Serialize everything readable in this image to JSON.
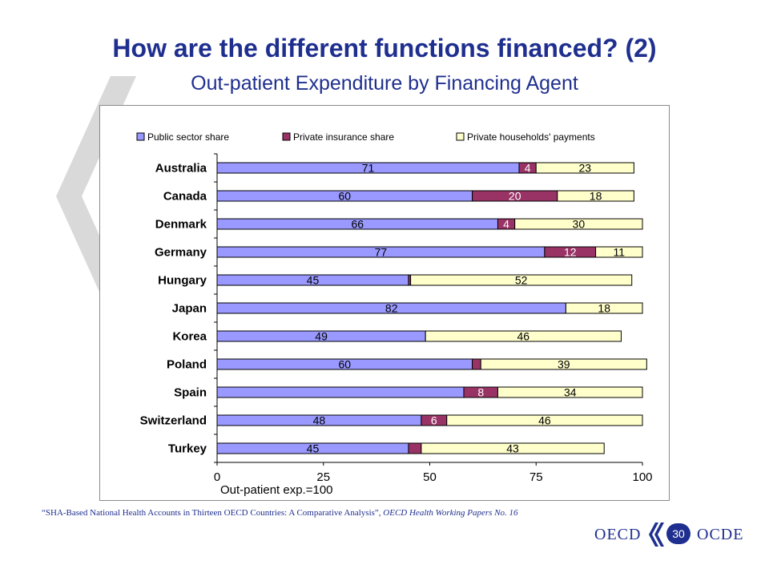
{
  "slide": {
    "title": "How are the different functions financed? (2)",
    "subtitle": "Out-patient Expenditure by Financing Agent",
    "source_plain": "“SHA-Based National Health Accounts in Thirteen OECD Countries: A Comparative Analysis”, ",
    "source_italic": "OECD Health Working Papers No. 16",
    "logo_left": "OECD",
    "logo_right": "OCDE",
    "page_number": "30"
  },
  "colors": {
    "title": "#1f2f8f",
    "public": "#9999ff",
    "private_insurance": "#993366",
    "households": "#ffffcc"
  },
  "chart_data": {
    "type": "bar",
    "orientation": "horizontal",
    "stacked": true,
    "title": "",
    "xlabel": "Out-patient exp.=100",
    "ylabel": "",
    "xlim": [
      0,
      100
    ],
    "xticks": [
      "0",
      "25",
      "50",
      "75",
      "100"
    ],
    "legend_position": "top",
    "categories": [
      "Australia",
      "Canada",
      "Denmark",
      "Germany",
      "Hungary",
      "Japan",
      "Korea",
      "Poland",
      "Spain",
      "Switzerland",
      "Turkey"
    ],
    "series": [
      {
        "name": "Public sector share",
        "color": "#9999ff",
        "values": [
          71,
          60,
          66,
          77,
          45,
          82,
          49,
          60,
          58,
          48,
          45
        ],
        "labels": [
          "71",
          "60",
          "66",
          "77",
          "45",
          "82",
          "49",
          "60",
          "",
          "48",
          "45"
        ]
      },
      {
        "name": "Private insurance share",
        "color": "#993366",
        "values": [
          4,
          20,
          4,
          12,
          0.5,
          0,
          0,
          2,
          8,
          6,
          3
        ],
        "labels": [
          "4",
          "20",
          "4",
          "12",
          "",
          "",
          "",
          "",
          "8",
          "6",
          ""
        ]
      },
      {
        "name": "Private households' payments",
        "color": "#ffffcc",
        "values": [
          23,
          18,
          30,
          11,
          52,
          18,
          46,
          39,
          34,
          46,
          43
        ],
        "labels": [
          "23",
          "18",
          "30",
          "11",
          "52",
          "18",
          "46",
          "39",
          "34",
          "46",
          "43"
        ]
      }
    ]
  }
}
